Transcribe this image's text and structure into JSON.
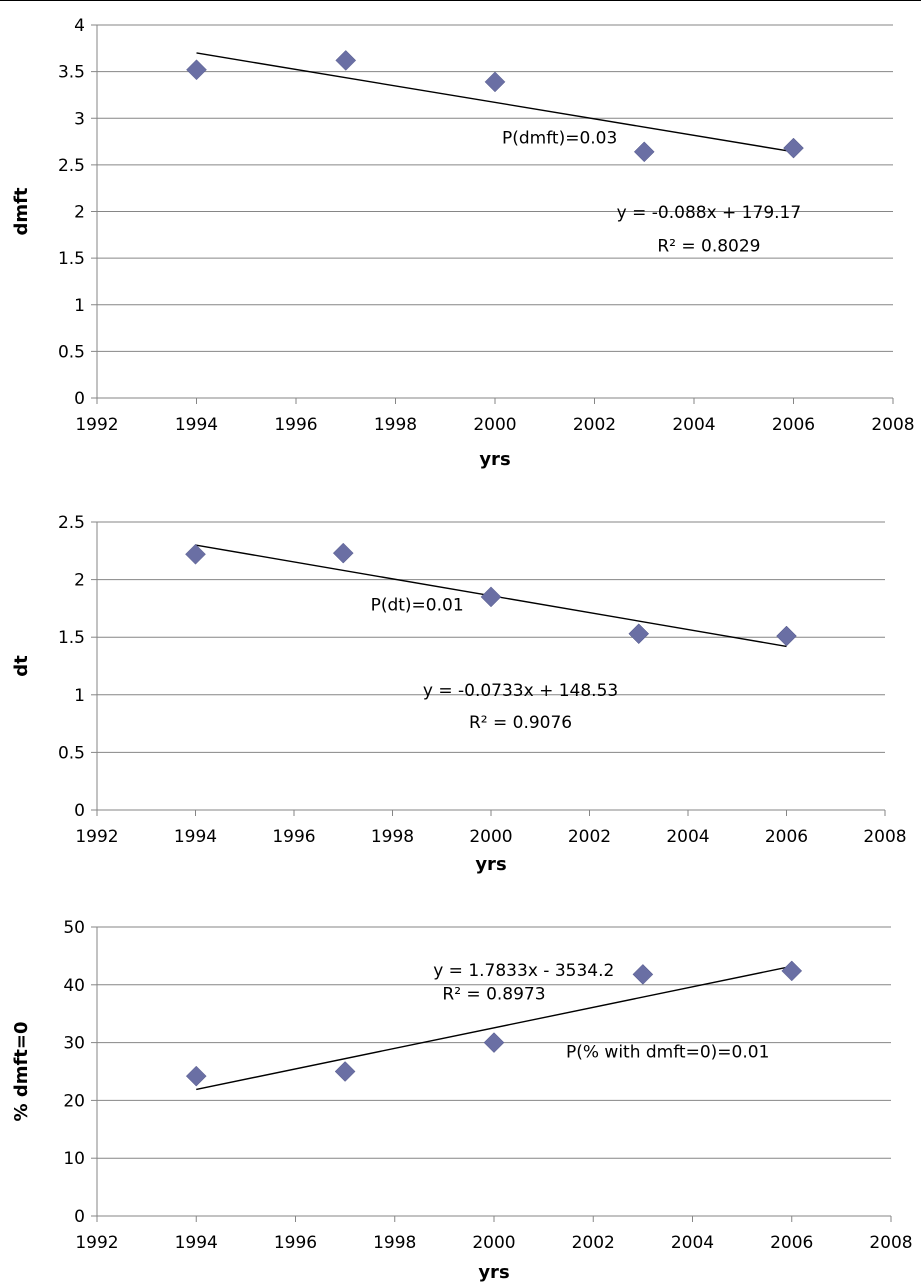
{
  "chart_data": [
    {
      "type": "scatter",
      "xlabel": "yrs",
      "ylabel": "dmft",
      "xlim": [
        1992,
        2008
      ],
      "ylim": [
        0,
        4
      ],
      "x_ticks": [
        1992,
        1994,
        1996,
        1998,
        2000,
        2002,
        2004,
        2006,
        2008
      ],
      "y_ticks": [
        0,
        0.5,
        1,
        1.5,
        2,
        2.5,
        3,
        3.5,
        4
      ],
      "grid": true,
      "legend": "none",
      "marker_color": "#6a6fa4",
      "series": [
        {
          "x": [
            1994,
            1997,
            2000,
            2003,
            2006
          ],
          "y": [
            3.52,
            3.62,
            3.39,
            2.64,
            2.68
          ]
        }
      ],
      "trendline": {
        "x": [
          1994,
          2006
        ],
        "y": [
          3.7,
          2.64
        ]
      },
      "annotations": [
        {
          "text": "P(dmft)=0.03",
          "x": 2001.3,
          "y": 2.73
        },
        {
          "text": "y = -0.088x + 179.17",
          "x": 2004.3,
          "y": 1.93
        },
        {
          "text": "R² = 0.8029",
          "x": 2004.3,
          "y": 1.57
        }
      ]
    },
    {
      "type": "scatter",
      "xlabel": "yrs",
      "ylabel": "dt",
      "xlim": [
        1992,
        2008
      ],
      "ylim": [
        0,
        2.5
      ],
      "x_ticks": [
        1992,
        1994,
        1996,
        1998,
        2000,
        2002,
        2004,
        2006,
        2008
      ],
      "y_ticks": [
        0,
        0.5,
        1,
        1.5,
        2,
        2.5
      ],
      "grid": true,
      "legend": "none",
      "marker_color": "#6a6fa4",
      "series": [
        {
          "x": [
            1994,
            1997,
            2000,
            2003,
            2006
          ],
          "y": [
            2.22,
            2.23,
            1.85,
            1.53,
            1.51
          ]
        }
      ],
      "trendline": {
        "x": [
          1994,
          2006
        ],
        "y": [
          2.3,
          1.42
        ]
      },
      "annotations": [
        {
          "text": "P(dt)=0.01",
          "x": 1998.5,
          "y": 1.73
        },
        {
          "text": "y = -0.0733x + 148.53",
          "x": 2000.6,
          "y": 0.99
        },
        {
          "text": "R² = 0.9076",
          "x": 2000.6,
          "y": 0.71
        }
      ]
    },
    {
      "type": "scatter",
      "xlabel": "yrs",
      "ylabel": "% dmft=0",
      "xlim": [
        1992,
        2008
      ],
      "ylim": [
        0,
        50
      ],
      "x_ticks": [
        1992,
        1994,
        1996,
        1998,
        2000,
        2002,
        2004,
        2006,
        2008
      ],
      "y_ticks": [
        0,
        10,
        20,
        30,
        40,
        50
      ],
      "grid": true,
      "legend": "none",
      "marker_color": "#6a6fa4",
      "series": [
        {
          "x": [
            1994,
            1997,
            2000,
            2003,
            2006
          ],
          "y": [
            24.2,
            25.0,
            30.0,
            41.8,
            42.4
          ]
        }
      ],
      "trendline": {
        "x": [
          1994,
          2006
        ],
        "y": [
          21.9,
          43.2
        ]
      },
      "annotations": [
        {
          "text": "y = 1.7833x - 3534.2",
          "x": 2000.6,
          "y": 41.5
        },
        {
          "text": "R² = 0.8973",
          "x": 2000.0,
          "y": 37.5
        },
        {
          "text": "P(% with dmft=0)=0.01",
          "x": 2003.5,
          "y": 27.4
        }
      ]
    }
  ]
}
